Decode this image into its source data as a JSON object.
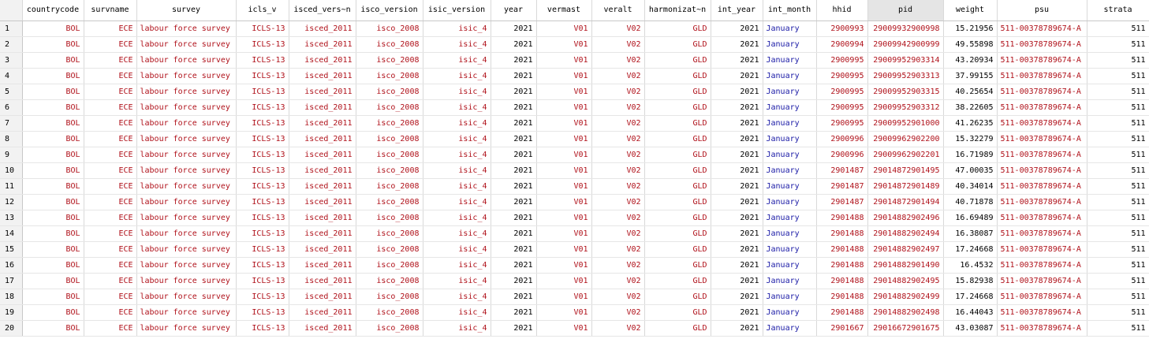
{
  "colors": {
    "string": "#b0121b",
    "label": "#1a1aa6",
    "numeric": "#000000",
    "selected_header": "#e5e5e5"
  },
  "columns": [
    {
      "name": "countrycode",
      "type": "str"
    },
    {
      "name": "survname",
      "type": "str"
    },
    {
      "name": "survey",
      "type": "str",
      "align": "left"
    },
    {
      "name": "icls_v",
      "type": "str"
    },
    {
      "name": "isced_vers~n",
      "type": "str"
    },
    {
      "name": "isco_version",
      "type": "str"
    },
    {
      "name": "isic_version",
      "type": "str"
    },
    {
      "name": "year",
      "type": "num"
    },
    {
      "name": "vermast",
      "type": "str"
    },
    {
      "name": "veralt",
      "type": "str"
    },
    {
      "name": "harmonizat~n",
      "type": "str"
    },
    {
      "name": "int_year",
      "type": "num"
    },
    {
      "name": "int_month",
      "type": "lab",
      "align": "left"
    },
    {
      "name": "hhid",
      "type": "str"
    },
    {
      "name": "pid",
      "type": "str",
      "selected": true
    },
    {
      "name": "weight",
      "type": "num"
    },
    {
      "name": "psu",
      "type": "str",
      "align": "left"
    },
    {
      "name": "strata",
      "type": "num"
    }
  ],
  "rows": [
    {
      "n": "1",
      "cells": [
        "BOL",
        "ECE",
        "labour force survey",
        "ICLS-13",
        "isced_2011",
        "isco_2008",
        "isic_4",
        "2021",
        "V01",
        "V02",
        "GLD",
        "2021",
        "January",
        "2900993",
        "29009932900998",
        "15.21956",
        "511-00378789674-A",
        "511"
      ]
    },
    {
      "n": "2",
      "cells": [
        "BOL",
        "ECE",
        "labour force survey",
        "ICLS-13",
        "isced_2011",
        "isco_2008",
        "isic_4",
        "2021",
        "V01",
        "V02",
        "GLD",
        "2021",
        "January",
        "2900994",
        "29009942900999",
        "49.55898",
        "511-00378789674-A",
        "511"
      ]
    },
    {
      "n": "3",
      "cells": [
        "BOL",
        "ECE",
        "labour force survey",
        "ICLS-13",
        "isced_2011",
        "isco_2008",
        "isic_4",
        "2021",
        "V01",
        "V02",
        "GLD",
        "2021",
        "January",
        "2900995",
        "29009952903314",
        "43.20934",
        "511-00378789674-A",
        "511"
      ]
    },
    {
      "n": "4",
      "cells": [
        "BOL",
        "ECE",
        "labour force survey",
        "ICLS-13",
        "isced_2011",
        "isco_2008",
        "isic_4",
        "2021",
        "V01",
        "V02",
        "GLD",
        "2021",
        "January",
        "2900995",
        "29009952903313",
        "37.99155",
        "511-00378789674-A",
        "511"
      ]
    },
    {
      "n": "5",
      "cells": [
        "BOL",
        "ECE",
        "labour force survey",
        "ICLS-13",
        "isced_2011",
        "isco_2008",
        "isic_4",
        "2021",
        "V01",
        "V02",
        "GLD",
        "2021",
        "January",
        "2900995",
        "29009952903315",
        "40.25654",
        "511-00378789674-A",
        "511"
      ]
    },
    {
      "n": "6",
      "cells": [
        "BOL",
        "ECE",
        "labour force survey",
        "ICLS-13",
        "isced_2011",
        "isco_2008",
        "isic_4",
        "2021",
        "V01",
        "V02",
        "GLD",
        "2021",
        "January",
        "2900995",
        "29009952903312",
        "38.22605",
        "511-00378789674-A",
        "511"
      ]
    },
    {
      "n": "7",
      "cells": [
        "BOL",
        "ECE",
        "labour force survey",
        "ICLS-13",
        "isced_2011",
        "isco_2008",
        "isic_4",
        "2021",
        "V01",
        "V02",
        "GLD",
        "2021",
        "January",
        "2900995",
        "29009952901000",
        "41.26235",
        "511-00378789674-A",
        "511"
      ]
    },
    {
      "n": "8",
      "cells": [
        "BOL",
        "ECE",
        "labour force survey",
        "ICLS-13",
        "isced_2011",
        "isco_2008",
        "isic_4",
        "2021",
        "V01",
        "V02",
        "GLD",
        "2021",
        "January",
        "2900996",
        "29009962902200",
        "15.32279",
        "511-00378789674-A",
        "511"
      ]
    },
    {
      "n": "9",
      "cells": [
        "BOL",
        "ECE",
        "labour force survey",
        "ICLS-13",
        "isced_2011",
        "isco_2008",
        "isic_4",
        "2021",
        "V01",
        "V02",
        "GLD",
        "2021",
        "January",
        "2900996",
        "29009962902201",
        "16.71989",
        "511-00378789674-A",
        "511"
      ]
    },
    {
      "n": "10",
      "cells": [
        "BOL",
        "ECE",
        "labour force survey",
        "ICLS-13",
        "isced_2011",
        "isco_2008",
        "isic_4",
        "2021",
        "V01",
        "V02",
        "GLD",
        "2021",
        "January",
        "2901487",
        "29014872901495",
        "47.00035",
        "511-00378789674-A",
        "511"
      ]
    },
    {
      "n": "11",
      "cells": [
        "BOL",
        "ECE",
        "labour force survey",
        "ICLS-13",
        "isced_2011",
        "isco_2008",
        "isic_4",
        "2021",
        "V01",
        "V02",
        "GLD",
        "2021",
        "January",
        "2901487",
        "29014872901489",
        "40.34014",
        "511-00378789674-A",
        "511"
      ]
    },
    {
      "n": "12",
      "cells": [
        "BOL",
        "ECE",
        "labour force survey",
        "ICLS-13",
        "isced_2011",
        "isco_2008",
        "isic_4",
        "2021",
        "V01",
        "V02",
        "GLD",
        "2021",
        "January",
        "2901487",
        "29014872901494",
        "40.71878",
        "511-00378789674-A",
        "511"
      ]
    },
    {
      "n": "13",
      "cells": [
        "BOL",
        "ECE",
        "labour force survey",
        "ICLS-13",
        "isced_2011",
        "isco_2008",
        "isic_4",
        "2021",
        "V01",
        "V02",
        "GLD",
        "2021",
        "January",
        "2901488",
        "29014882902496",
        "16.69489",
        "511-00378789674-A",
        "511"
      ]
    },
    {
      "n": "14",
      "cells": [
        "BOL",
        "ECE",
        "labour force survey",
        "ICLS-13",
        "isced_2011",
        "isco_2008",
        "isic_4",
        "2021",
        "V01",
        "V02",
        "GLD",
        "2021",
        "January",
        "2901488",
        "29014882902494",
        "16.38087",
        "511-00378789674-A",
        "511"
      ]
    },
    {
      "n": "15",
      "cells": [
        "BOL",
        "ECE",
        "labour force survey",
        "ICLS-13",
        "isced_2011",
        "isco_2008",
        "isic_4",
        "2021",
        "V01",
        "V02",
        "GLD",
        "2021",
        "January",
        "2901488",
        "29014882902497",
        "17.24668",
        "511-00378789674-A",
        "511"
      ]
    },
    {
      "n": "16",
      "cells": [
        "BOL",
        "ECE",
        "labour force survey",
        "ICLS-13",
        "isced_2011",
        "isco_2008",
        "isic_4",
        "2021",
        "V01",
        "V02",
        "GLD",
        "2021",
        "January",
        "2901488",
        "29014882901490",
        "16.4532",
        "511-00378789674-A",
        "511"
      ]
    },
    {
      "n": "17",
      "cells": [
        "BOL",
        "ECE",
        "labour force survey",
        "ICLS-13",
        "isced_2011",
        "isco_2008",
        "isic_4",
        "2021",
        "V01",
        "V02",
        "GLD",
        "2021",
        "January",
        "2901488",
        "29014882902495",
        "15.82938",
        "511-00378789674-A",
        "511"
      ]
    },
    {
      "n": "18",
      "cells": [
        "BOL",
        "ECE",
        "labour force survey",
        "ICLS-13",
        "isced_2011",
        "isco_2008",
        "isic_4",
        "2021",
        "V01",
        "V02",
        "GLD",
        "2021",
        "January",
        "2901488",
        "29014882902499",
        "17.24668",
        "511-00378789674-A",
        "511"
      ]
    },
    {
      "n": "19",
      "cells": [
        "BOL",
        "ECE",
        "labour force survey",
        "ICLS-13",
        "isced_2011",
        "isco_2008",
        "isic_4",
        "2021",
        "V01",
        "V02",
        "GLD",
        "2021",
        "January",
        "2901488",
        "29014882902498",
        "16.44043",
        "511-00378789674-A",
        "511"
      ]
    },
    {
      "n": "20",
      "cells": [
        "BOL",
        "ECE",
        "labour force survey",
        "ICLS-13",
        "isced_2011",
        "isco_2008",
        "isic_4",
        "2021",
        "V01",
        "V02",
        "GLD",
        "2021",
        "January",
        "2901667",
        "29016672901675",
        "43.03087",
        "511-00378789674-A",
        "511"
      ]
    }
  ]
}
